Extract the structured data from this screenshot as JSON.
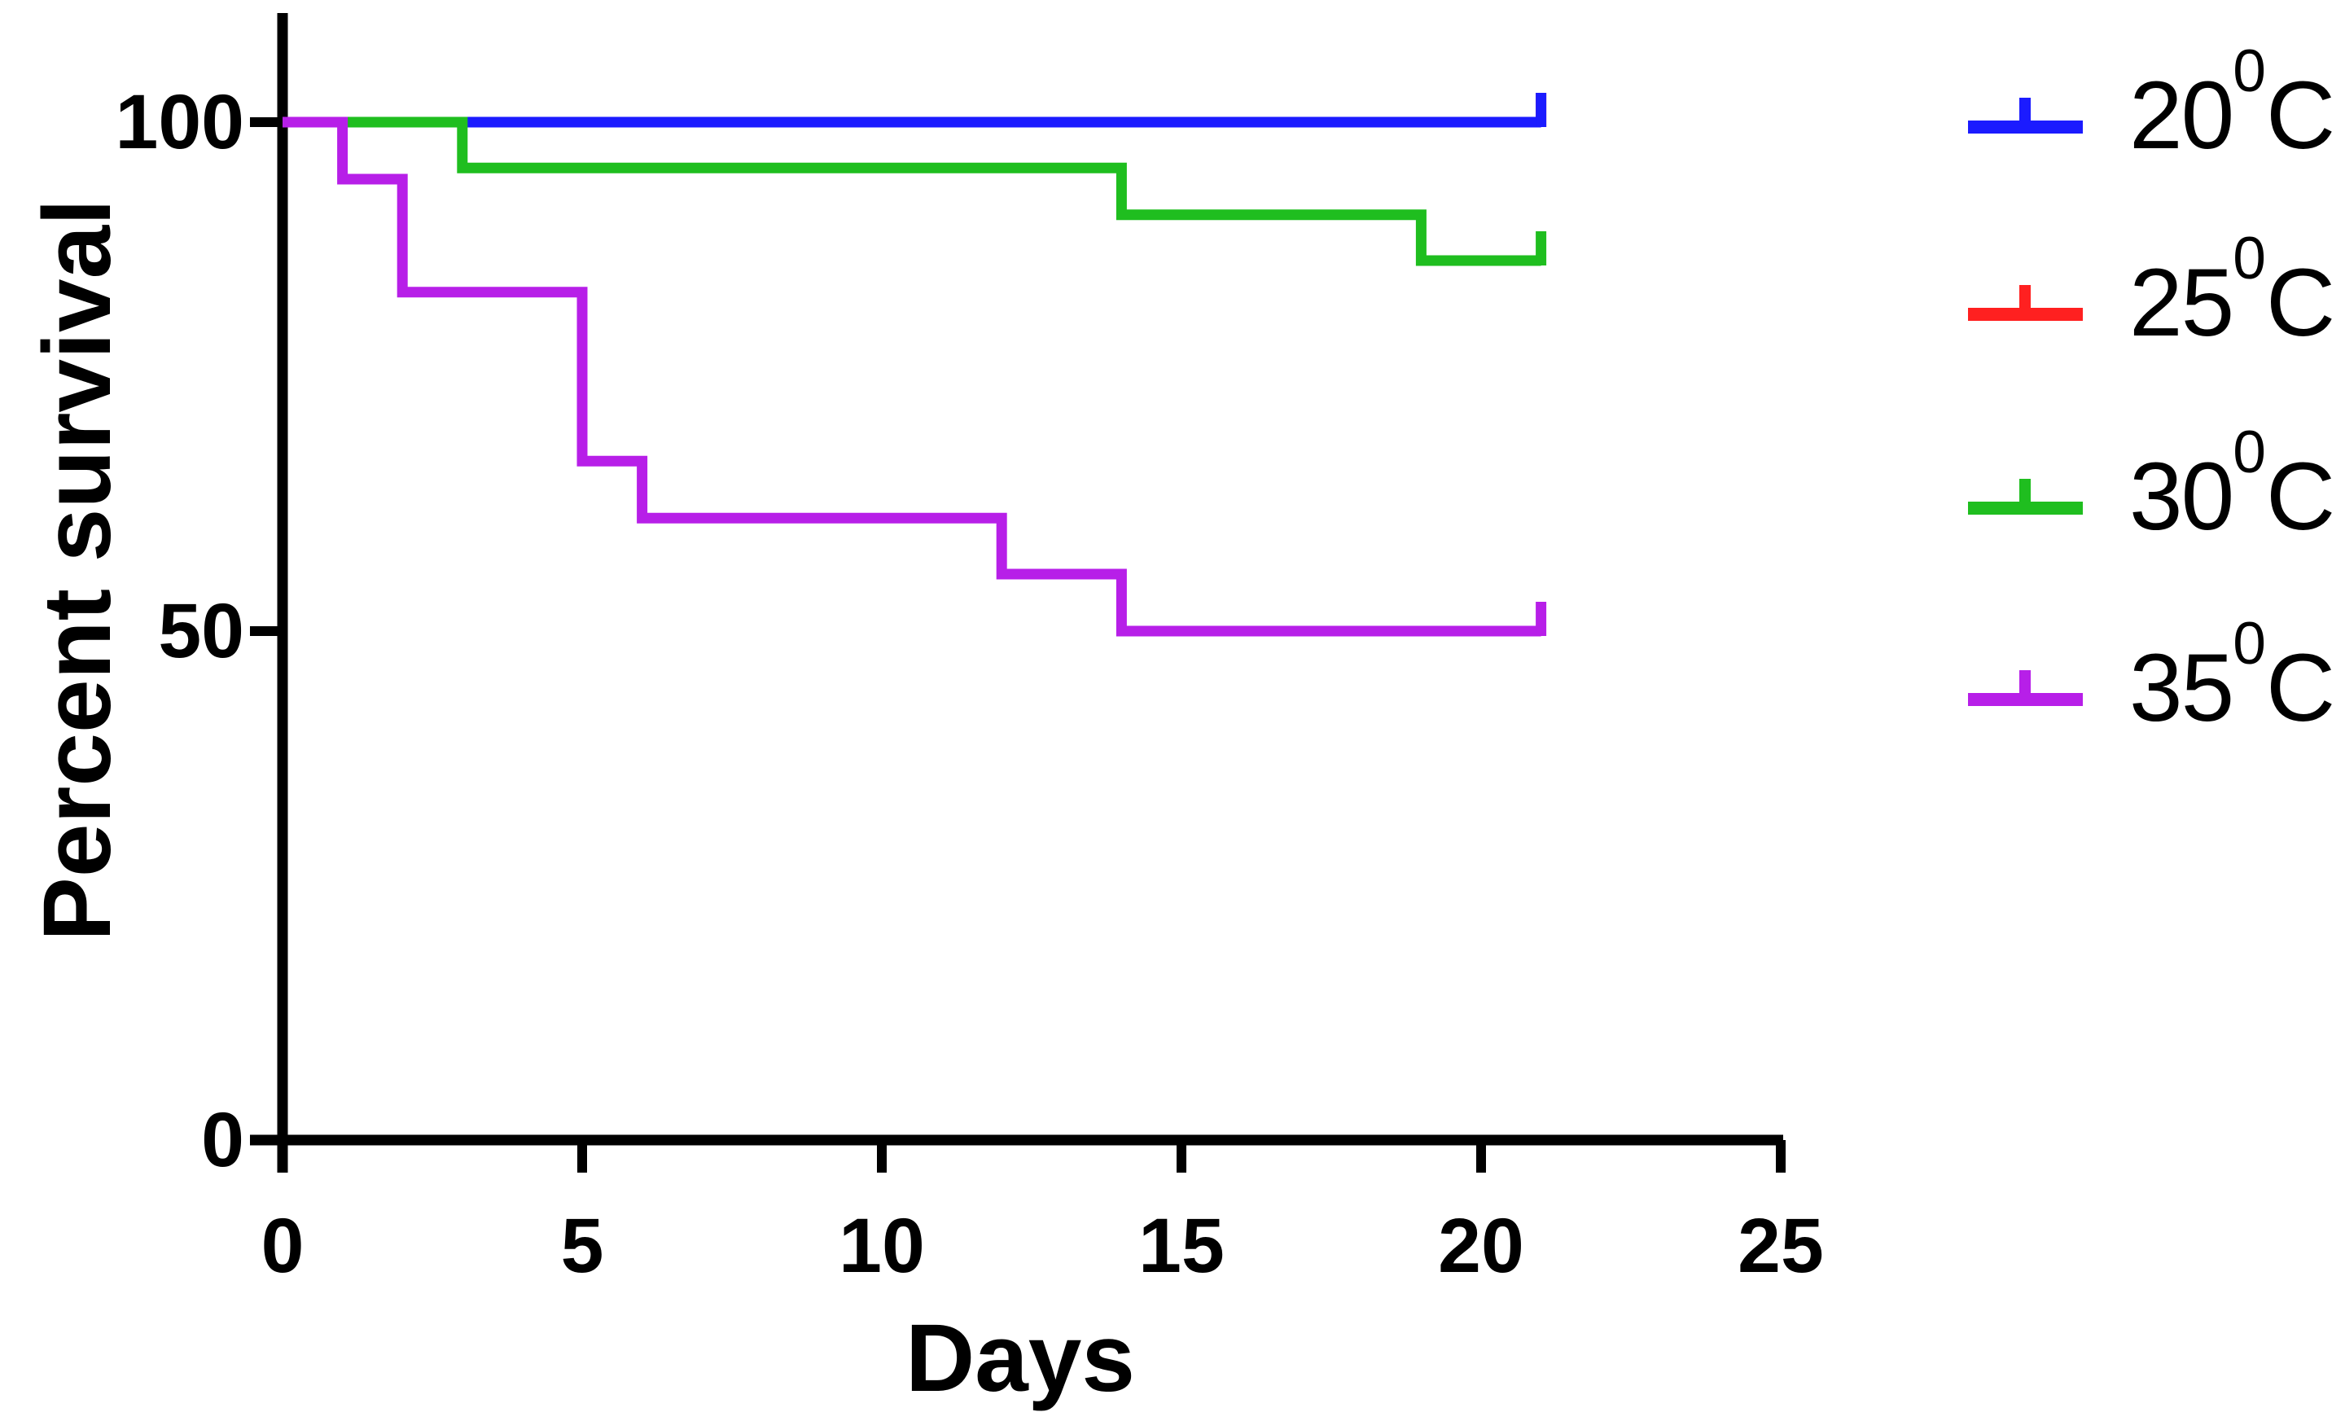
{
  "chart_data": {
    "type": "line",
    "subtype": "kaplan-meier-step-survival",
    "title": "",
    "xlabel": "Days",
    "ylabel": "Percent survival",
    "xlim": [
      0,
      25
    ],
    "ylim": [
      0,
      100
    ],
    "x_ticks": [
      0,
      5,
      10,
      15,
      20,
      25
    ],
    "y_ticks": [
      100,
      50,
      0
    ],
    "grid": false,
    "legend_position": "right-outside",
    "axis_color": "#000000",
    "background_color": "#ffffff",
    "series": [
      {
        "name": "20C",
        "legend": {
          "num": "20",
          "sup": "0",
          "unit": "C"
        },
        "color": "#1b1bff",
        "steps": [
          [
            0,
            100
          ]
        ],
        "end_day": 21,
        "final_value": 100,
        "censored_at_end": true
      },
      {
        "name": "25C",
        "legend": {
          "num": "25",
          "sup": "0",
          "unit": "C"
        },
        "color": "#ff2020",
        "steps": [
          [
            0,
            100
          ]
        ],
        "end_day": 21,
        "final_value": 100,
        "censored_at_end": true,
        "overlaps": "hidden beneath the 20C line at 100%"
      },
      {
        "name": "30C",
        "legend": {
          "num": "30",
          "sup": "0",
          "unit": "C"
        },
        "color": "#1fbe1f",
        "steps": [
          [
            0,
            100
          ],
          [
            3,
            95.5
          ],
          [
            14,
            90.9
          ],
          [
            19,
            86.4
          ]
        ],
        "end_day": 21,
        "final_value": 86.4,
        "censored_at_end": true
      },
      {
        "name": "35C",
        "legend": {
          "num": "35",
          "sup": "0",
          "unit": "C"
        },
        "color": "#b71fe8",
        "steps": [
          [
            0,
            100
          ],
          [
            1,
            94.4
          ],
          [
            2,
            83.3
          ],
          [
            5,
            66.7
          ],
          [
            6,
            61.1
          ],
          [
            12,
            55.6
          ],
          [
            14,
            50
          ]
        ],
        "end_day": 21,
        "final_value": 50,
        "censored_at_end": true
      }
    ]
  }
}
